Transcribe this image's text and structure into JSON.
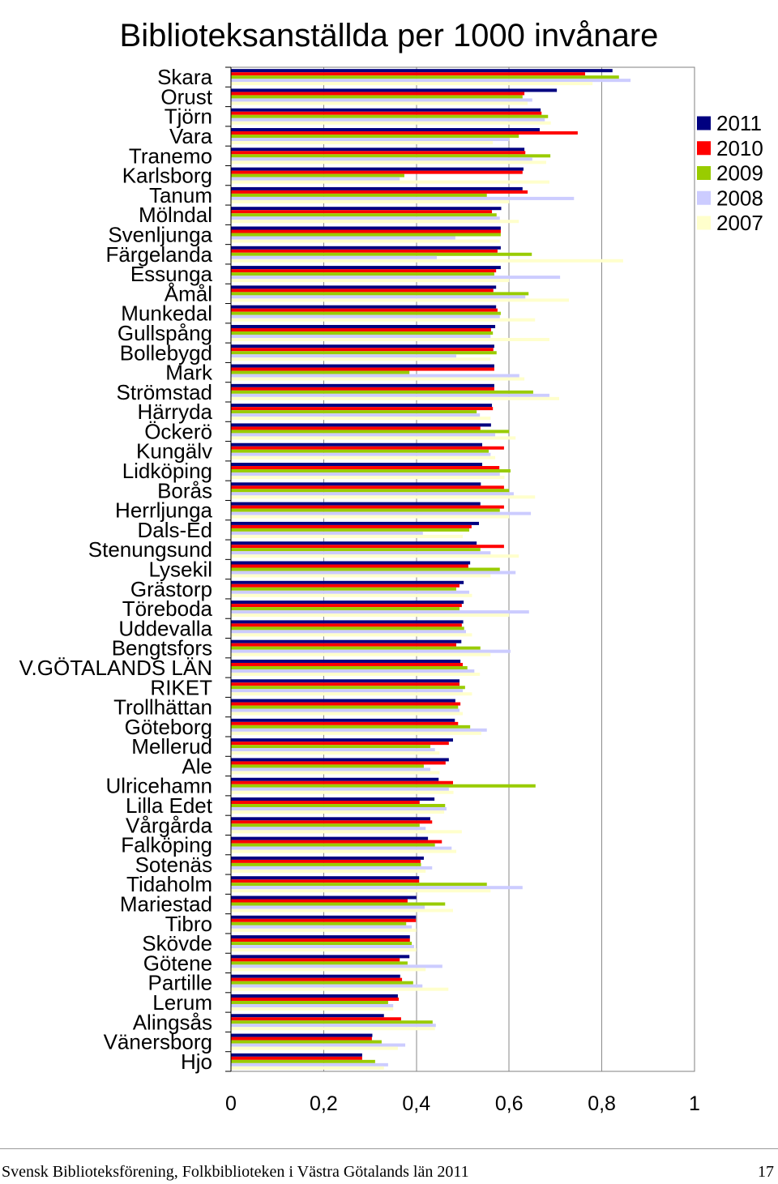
{
  "chart_data": {
    "type": "bar",
    "orientation": "horizontal",
    "title": "Biblioteksanställda per 1000 invånare",
    "categories": [
      "Skara",
      "Orust",
      "Tjörn",
      "Vara",
      "Tranemo",
      "Karlsborg",
      "Tanum",
      "Mölndal",
      "Svenljunga",
      "Färgelanda",
      "Essunga",
      "Åmål",
      "Munkedal",
      "Gullspång",
      "Bollebygd",
      "Mark",
      "Strömstad",
      "Härryda",
      "Öckerö",
      "Kungälv",
      "Lidköping",
      "Borås",
      "Herrljunga",
      "Dals-Ed",
      "Stenungsund",
      "Lysekil",
      "Grästorp",
      "Töreboda",
      "Uddevalla",
      "Bengtsfors",
      "V.GÖTALANDS LÄN",
      "RIKET",
      "Trollhättan",
      "Göteborg",
      "Mellerud",
      "Ale",
      "Ulricehamn",
      "Lilla Edet",
      "Vårgårda",
      "Falköping",
      "Sotenäs",
      "Tidaholm",
      "Mariestad",
      "Tibro",
      "Skövde",
      "Götene",
      "Partille",
      "Lerum",
      "Alingsås",
      "Vänersborg",
      "Hjo"
    ],
    "series": [
      {
        "name": "2011",
        "color": "#000080",
        "values": [
          0.823,
          0.703,
          0.668,
          0.666,
          0.633,
          0.631,
          0.629,
          0.583,
          0.582,
          0.582,
          0.582,
          0.572,
          0.572,
          0.57,
          0.568,
          0.568,
          0.568,
          0.563,
          0.561,
          0.542,
          0.542,
          0.539,
          0.538,
          0.535,
          0.53,
          0.516,
          0.502,
          0.502,
          0.501,
          0.497,
          0.495,
          0.493,
          0.484,
          0.483,
          0.479,
          0.47,
          0.448,
          0.439,
          0.43,
          0.425,
          0.416,
          0.406,
          0.4,
          0.399,
          0.386,
          0.385,
          0.365,
          0.36,
          0.33,
          0.305,
          0.283
        ]
      },
      {
        "name": "2010",
        "color": "#FF0000",
        "values": [
          0.764,
          0.633,
          0.67,
          0.748,
          0.635,
          0.629,
          0.64,
          0.563,
          0.582,
          0.575,
          0.572,
          0.566,
          0.575,
          0.561,
          0.566,
          0.568,
          0.568,
          0.565,
          0.538,
          0.589,
          0.579,
          0.589,
          0.589,
          0.519,
          0.589,
          0.512,
          0.493,
          0.498,
          0.498,
          0.486,
          0.5,
          0.493,
          0.495,
          0.49,
          0.47,
          0.463,
          0.479,
          0.407,
          0.434,
          0.455,
          0.409,
          0.406,
          0.381,
          0.399,
          0.386,
          0.364,
          0.369,
          0.362,
          0.367,
          0.304,
          0.283
        ]
      },
      {
        "name": "2009",
        "color": "#99CC00",
        "values": [
          0.837,
          0.629,
          0.684,
          0.621,
          0.689,
          0.374,
          0.552,
          0.573,
          0.582,
          0.649,
          0.568,
          0.642,
          0.582,
          0.565,
          0.573,
          0.385,
          0.652,
          0.53,
          0.6,
          0.556,
          0.603,
          0.6,
          0.58,
          0.514,
          0.538,
          0.58,
          0.486,
          0.493,
          0.503,
          0.538,
          0.51,
          0.505,
          0.49,
          0.516,
          0.43,
          0.416,
          0.657,
          0.462,
          0.407,
          0.44,
          0.41,
          0.552,
          0.462,
          0.378,
          0.39,
          0.381,
          0.393,
          0.339,
          0.435,
          0.325,
          0.311
        ]
      },
      {
        "name": "2008",
        "color": "#CCCCFF",
        "values": [
          0.862,
          0.65,
          0.677,
          0.6,
          0.65,
          0.364,
          0.74,
          0.58,
          0.484,
          0.444,
          0.71,
          0.635,
          0.58,
          0.56,
          0.486,
          0.622,
          0.687,
          0.537,
          0.57,
          0.56,
          0.58,
          0.61,
          0.647,
          0.414,
          0.56,
          0.614,
          0.514,
          0.643,
          0.507,
          0.603,
          0.525,
          0.5,
          0.493,
          0.552,
          0.44,
          0.43,
          0.47,
          0.465,
          0.42,
          0.476,
          0.434,
          0.629,
          0.418,
          0.39,
          0.395,
          0.456,
          0.413,
          0.35,
          0.442,
          0.376,
          0.339
        ]
      },
      {
        "name": "2007",
        "color": "#FFFFCC",
        "values": [
          0.78,
          0.64,
          0.69,
          0.565,
          0.68,
          0.687,
          0.6,
          0.621,
          0.58,
          0.846,
          0.6,
          0.729,
          0.656,
          0.687,
          0.56,
          0.633,
          0.708,
          0.56,
          0.614,
          0.57,
          0.59,
          0.656,
          0.6,
          0.5,
          0.621,
          0.56,
          0.52,
          0.6,
          0.52,
          0.56,
          0.537,
          0.52,
          0.5,
          0.54,
          0.45,
          0.45,
          0.48,
          0.46,
          0.498,
          0.486,
          0.42,
          0.56,
          0.479,
          0.4,
          0.4,
          0.42,
          0.469,
          0.35,
          0.44,
          0.36,
          0.33
        ]
      }
    ],
    "xlim": [
      0,
      1
    ],
    "xtick_values": [
      0,
      0.2,
      0.4,
      0.6,
      0.8,
      1
    ],
    "xtick_labels": [
      "0",
      "0,2",
      "0,4",
      "0,6",
      "0,8",
      "1"
    ],
    "grid": true,
    "legend": "right"
  },
  "footer": {
    "text": "Svensk Biblioteksförening, Folkbiblioteken i Västra Götalands län 2011",
    "page_number": "17"
  }
}
